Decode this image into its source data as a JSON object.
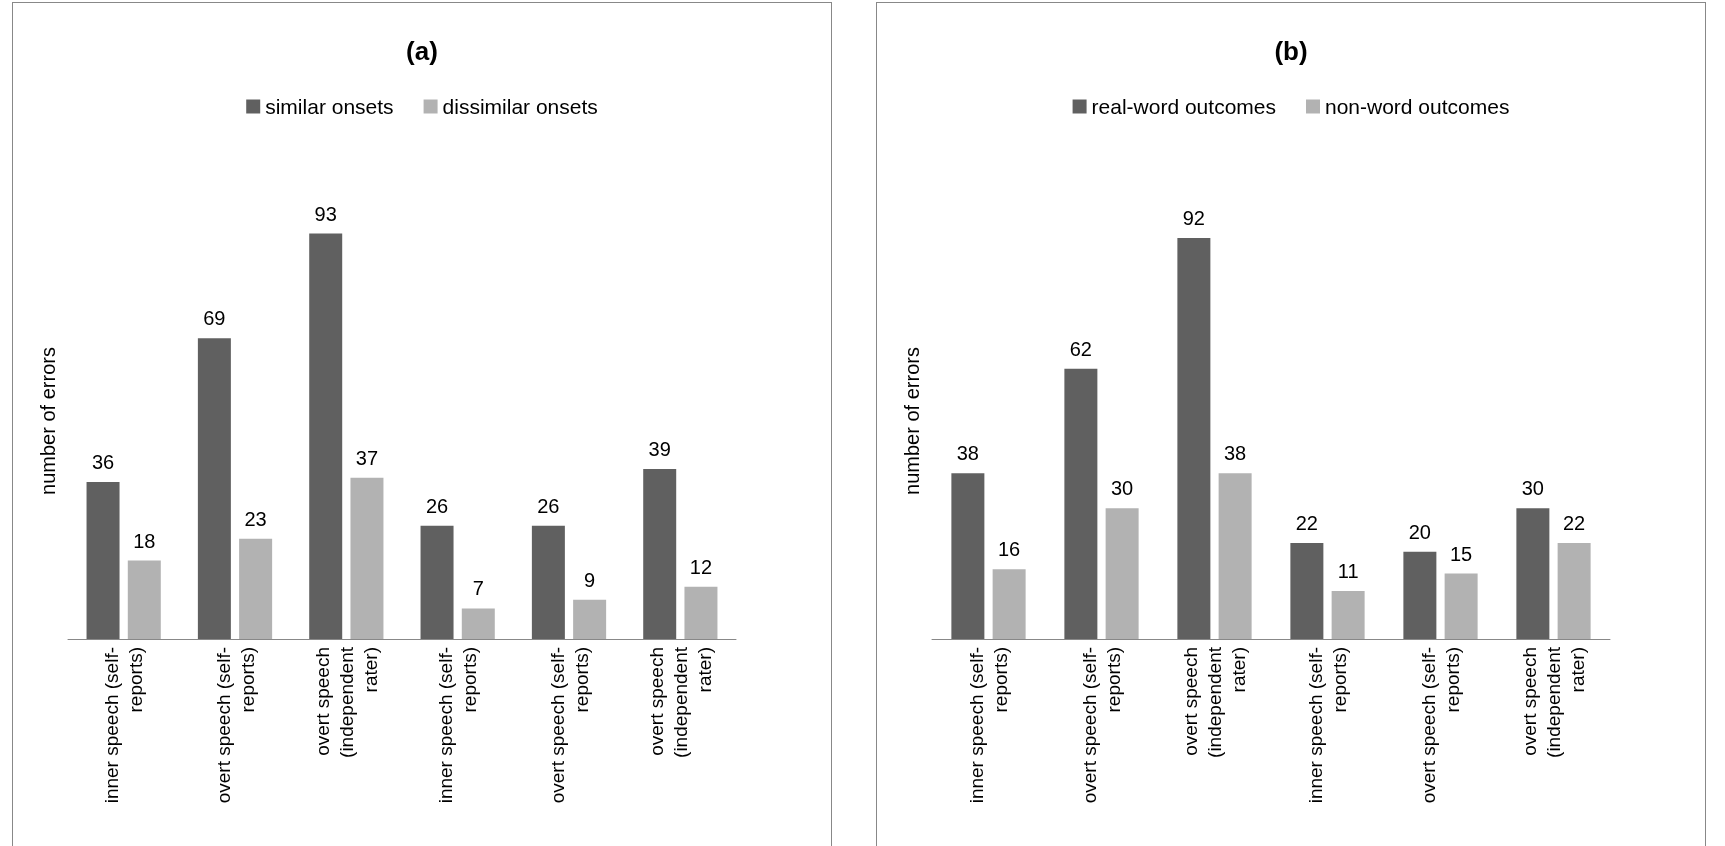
{
  "chart_data": [
    {
      "type": "bar",
      "title": "(a)",
      "ylabel": "number of errors",
      "categories": [
        "inner speech (self-reports)",
        "overt speech (self-reports)",
        "overt speech (independent rater)",
        "inner speech (self-reports)",
        "overt speech (self-reports)",
        "overt speech (independent rater)"
      ],
      "series": [
        {
          "name": "similar onsets",
          "color": "#606060",
          "values": [
            36,
            69,
            93,
            26,
            26,
            39
          ]
        },
        {
          "name": "dissimilar onsets",
          "color": "#b2b2b2",
          "values": [
            18,
            23,
            37,
            7,
            9,
            12
          ]
        }
      ],
      "data_labels": true,
      "legend": "top",
      "grid": false
    },
    {
      "type": "bar",
      "title": "(b)",
      "ylabel": "number of errors",
      "categories": [
        "inner speech (self-reports)",
        "overt speech (self-reports)",
        "overt speech (independent rater)",
        "inner speech (self-reports)",
        "overt speech (self-reports)",
        "overt speech (independent rater)"
      ],
      "series": [
        {
          "name": "real-word outcomes",
          "color": "#606060",
          "values": [
            38,
            62,
            92,
            22,
            20,
            30
          ]
        },
        {
          "name": "non-word outcomes",
          "color": "#b2b2b2",
          "values": [
            16,
            30,
            38,
            11,
            15,
            22
          ]
        }
      ],
      "data_labels": true,
      "legend": "top",
      "grid": false
    }
  ]
}
